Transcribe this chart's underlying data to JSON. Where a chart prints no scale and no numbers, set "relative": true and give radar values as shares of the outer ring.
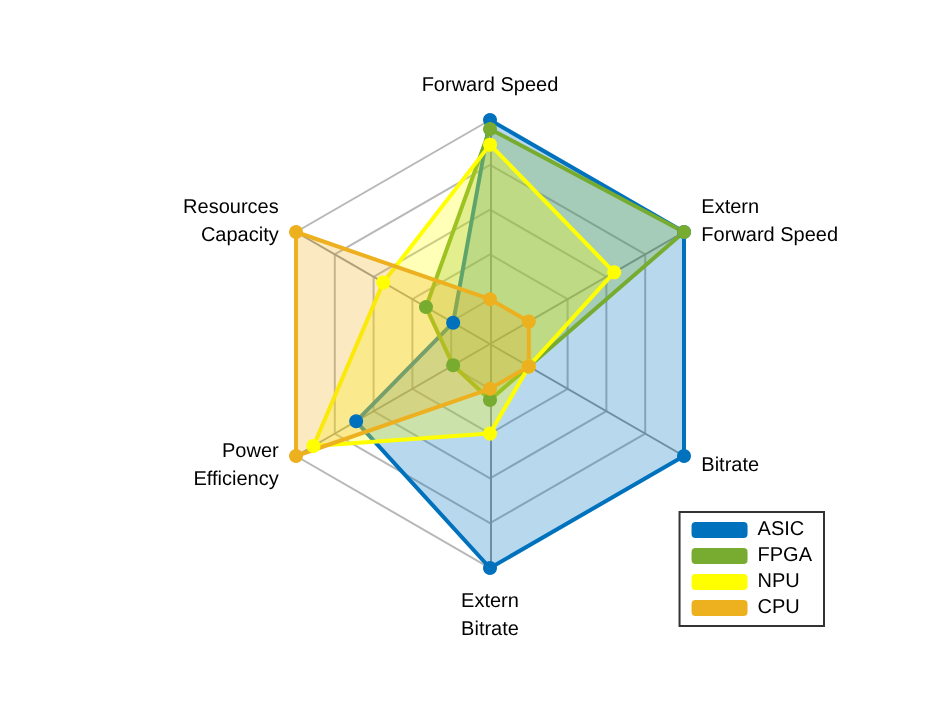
{
  "chart_data": {
    "type": "radar",
    "relative": true,
    "categories": [
      "Forward Speed",
      "Extern\nForward Speed",
      "Bitrate",
      "Extern\nBitrate",
      "Power\nEfficiency",
      "Resources\nCapacity"
    ],
    "series": [
      {
        "name": "ASIC",
        "color": "#0072bd",
        "values": [
          1.0,
          1.0,
          1.0,
          1.0,
          0.69,
          0.19
        ]
      },
      {
        "name": "FPGA",
        "color": "#77ac30",
        "values": [
          0.96,
          1.0,
          0.2,
          0.25,
          0.19,
          0.33
        ]
      },
      {
        "name": "NPU",
        "color": "#ffff00",
        "values": [
          0.89,
          0.64,
          0.2,
          0.4,
          0.91,
          0.55
        ]
      },
      {
        "name": "CPU",
        "color": "#edb120",
        "values": [
          0.2,
          0.2,
          0.2,
          0.2,
          1.0,
          1.0
        ]
      }
    ],
    "legend": "bottom right",
    "marker": "circle",
    "grid": true
  }
}
